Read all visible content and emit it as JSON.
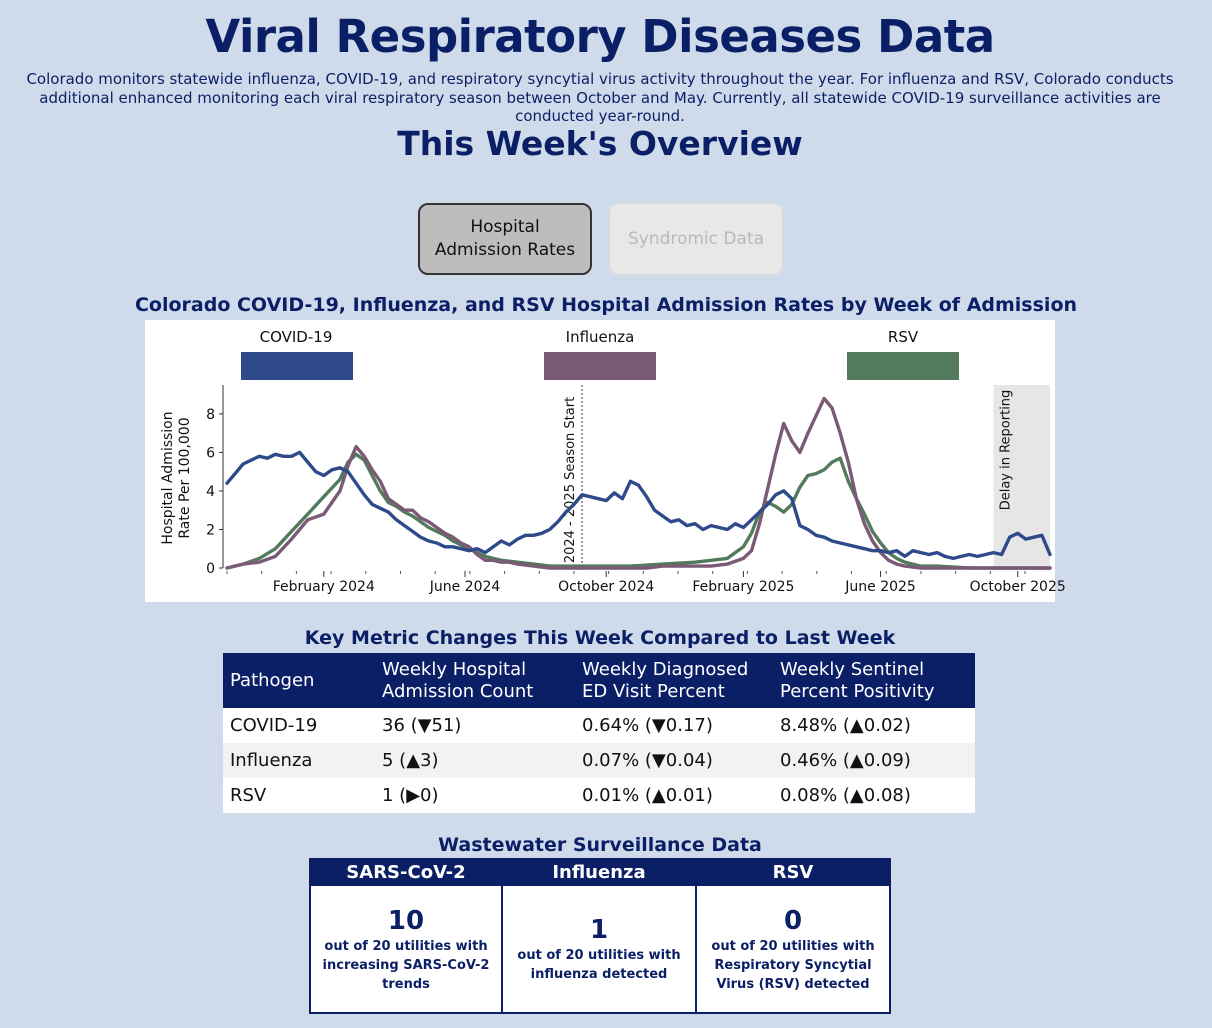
{
  "page": {
    "title": "Viral Respiratory Diseases Data",
    "intro": "Colorado monitors statewide influenza, COVID-19, and respiratory syncytial virus activity throughout the year. For influenza and RSV, Colorado conducts additional enhanced monitoring each viral respiratory season between October and May. Currently, all statewide COVID-19 surveillance activities are conducted year-round.",
    "overview_title": "This Week's Overview"
  },
  "tabs": {
    "hospital_label": "Hospital Admission Rates",
    "syndromic_label": "Syndromic Data"
  },
  "chart_data": {
    "type": "line",
    "title": "Colorado COVID-19, Influenza, and RSV Hospital Admission Rates by Week of Admission",
    "xlabel": "",
    "ylabel": "Hospital Admission Rate Per 100,000",
    "ylim": [
      0,
      9.5
    ],
    "yticks": [
      0,
      2,
      4,
      6,
      8
    ],
    "xticks": [
      {
        "label": "February 2024",
        "week": 12
      },
      {
        "label": "June 2024",
        "week": 29.5
      },
      {
        "label": "October 2024",
        "week": 47
      },
      {
        "label": "February 2025",
        "week": 64
      },
      {
        "label": "June 2025",
        "week": 81
      },
      {
        "label": "October 2025",
        "week": 98
      }
    ],
    "annotations": {
      "season_start_label": "2024 - 2025 Season Start",
      "season_start_week": 44,
      "delay_label": "Delay in Reporting",
      "delay_start_week": 95,
      "delay_end_week": 102
    },
    "legend": [
      {
        "name": "COVID-19",
        "color": "#2f4a8a"
      },
      {
        "name": "Influenza",
        "color": "#7a5a75"
      },
      {
        "name": "RSV",
        "color": "#527a5c"
      }
    ],
    "series": [
      {
        "name": "COVID-19",
        "color": "#2f4a8a",
        "points": [
          [
            0,
            4.4
          ],
          [
            1,
            4.9
          ],
          [
            2,
            5.4
          ],
          [
            3,
            5.6
          ],
          [
            4,
            5.8
          ],
          [
            5,
            5.7
          ],
          [
            6,
            5.9
          ],
          [
            7,
            5.8
          ],
          [
            8,
            5.8
          ],
          [
            9,
            6.0
          ],
          [
            10,
            5.5
          ],
          [
            11,
            5.0
          ],
          [
            12,
            4.8
          ],
          [
            13,
            5.1
          ],
          [
            14,
            5.2
          ],
          [
            15,
            5.0
          ],
          [
            16,
            4.4
          ],
          [
            17,
            3.8
          ],
          [
            18,
            3.3
          ],
          [
            19,
            3.1
          ],
          [
            20,
            2.9
          ],
          [
            21,
            2.5
          ],
          [
            22,
            2.2
          ],
          [
            23,
            1.9
          ],
          [
            24,
            1.6
          ],
          [
            25,
            1.4
          ],
          [
            26,
            1.3
          ],
          [
            27,
            1.1
          ],
          [
            28,
            1.1
          ],
          [
            29,
            1.0
          ],
          [
            30,
            0.9
          ],
          [
            31,
            1.0
          ],
          [
            32,
            0.8
          ],
          [
            33,
            1.1
          ],
          [
            34,
            1.4
          ],
          [
            35,
            1.2
          ],
          [
            36,
            1.5
          ],
          [
            37,
            1.7
          ],
          [
            38,
            1.7
          ],
          [
            39,
            1.8
          ],
          [
            40,
            2.0
          ],
          [
            41,
            2.4
          ],
          [
            42,
            2.9
          ],
          [
            43,
            3.3
          ],
          [
            44,
            3.8
          ],
          [
            45,
            3.7
          ],
          [
            46,
            3.6
          ],
          [
            47,
            3.5
          ],
          [
            48,
            3.9
          ],
          [
            49,
            3.6
          ],
          [
            50,
            4.5
          ],
          [
            51,
            4.3
          ],
          [
            52,
            3.7
          ],
          [
            53,
            3.0
          ],
          [
            54,
            2.7
          ],
          [
            55,
            2.4
          ],
          [
            56,
            2.5
          ],
          [
            57,
            2.2
          ],
          [
            58,
            2.3
          ],
          [
            59,
            2.0
          ],
          [
            60,
            2.2
          ],
          [
            61,
            2.1
          ],
          [
            62,
            2.0
          ],
          [
            63,
            2.3
          ],
          [
            64,
            2.1
          ],
          [
            65,
            2.5
          ],
          [
            66,
            2.9
          ],
          [
            67,
            3.3
          ],
          [
            68,
            3.8
          ],
          [
            69,
            4.0
          ],
          [
            70,
            3.6
          ],
          [
            71,
            2.2
          ],
          [
            72,
            2.0
          ],
          [
            73,
            1.7
          ],
          [
            74,
            1.6
          ],
          [
            75,
            1.4
          ],
          [
            76,
            1.3
          ],
          [
            77,
            1.2
          ],
          [
            78,
            1.1
          ],
          [
            79,
            1.0
          ],
          [
            80,
            0.9
          ],
          [
            81,
            0.9
          ],
          [
            82,
            0.8
          ],
          [
            83,
            0.9
          ],
          [
            84,
            0.6
          ],
          [
            85,
            0.9
          ],
          [
            86,
            0.8
          ],
          [
            87,
            0.7
          ],
          [
            88,
            0.8
          ],
          [
            89,
            0.6
          ],
          [
            90,
            0.5
          ],
          [
            91,
            0.6
          ],
          [
            92,
            0.7
          ],
          [
            93,
            0.6
          ],
          [
            94,
            0.7
          ],
          [
            95,
            0.8
          ],
          [
            96,
            0.7
          ],
          [
            97,
            1.6
          ],
          [
            98,
            1.8
          ],
          [
            99,
            1.5
          ],
          [
            100,
            1.6
          ],
          [
            101,
            1.7
          ],
          [
            102,
            0.7
          ]
        ]
      },
      {
        "name": "Influenza",
        "color": "#7a5a75",
        "points": [
          [
            0,
            0.0
          ],
          [
            2,
            0.2
          ],
          [
            4,
            0.3
          ],
          [
            6,
            0.6
          ],
          [
            8,
            1.5
          ],
          [
            10,
            2.5
          ],
          [
            12,
            2.8
          ],
          [
            14,
            4.0
          ],
          [
            15,
            5.3
          ],
          [
            16,
            6.3
          ],
          [
            17,
            5.8
          ],
          [
            18,
            5.1
          ],
          [
            19,
            4.5
          ],
          [
            20,
            3.6
          ],
          [
            21,
            3.3
          ],
          [
            22,
            3.0
          ],
          [
            23,
            3.0
          ],
          [
            24,
            2.6
          ],
          [
            25,
            2.4
          ],
          [
            26,
            2.1
          ],
          [
            27,
            1.8
          ],
          [
            28,
            1.6
          ],
          [
            29,
            1.3
          ],
          [
            30,
            1.1
          ],
          [
            31,
            0.7
          ],
          [
            32,
            0.4
          ],
          [
            33,
            0.4
          ],
          [
            34,
            0.3
          ],
          [
            35,
            0.3
          ],
          [
            36,
            0.2
          ],
          [
            38,
            0.1
          ],
          [
            40,
            0.0
          ],
          [
            44,
            0.0
          ],
          [
            46,
            0.0
          ],
          [
            48,
            0.0
          ],
          [
            50,
            0.0
          ],
          [
            52,
            0.0
          ],
          [
            54,
            0.1
          ],
          [
            56,
            0.1
          ],
          [
            58,
            0.1
          ],
          [
            60,
            0.1
          ],
          [
            62,
            0.2
          ],
          [
            64,
            0.5
          ],
          [
            65,
            0.9
          ],
          [
            66,
            2.3
          ],
          [
            67,
            4.1
          ],
          [
            68,
            5.9
          ],
          [
            69,
            7.5
          ],
          [
            70,
            6.6
          ],
          [
            71,
            6.0
          ],
          [
            72,
            7.0
          ],
          [
            73,
            7.9
          ],
          [
            74,
            8.8
          ],
          [
            75,
            8.3
          ],
          [
            76,
            7.0
          ],
          [
            77,
            5.5
          ],
          [
            78,
            3.6
          ],
          [
            79,
            2.3
          ],
          [
            80,
            1.4
          ],
          [
            81,
            0.8
          ],
          [
            82,
            0.4
          ],
          [
            83,
            0.2
          ],
          [
            84,
            0.1
          ],
          [
            86,
            0.0
          ],
          [
            90,
            0.0
          ],
          [
            94,
            0.0
          ],
          [
            98,
            0.0
          ],
          [
            102,
            0.0
          ]
        ]
      },
      {
        "name": "RSV",
        "color": "#527a5c",
        "points": [
          [
            0,
            0.0
          ],
          [
            2,
            0.2
          ],
          [
            4,
            0.5
          ],
          [
            6,
            1.0
          ],
          [
            8,
            1.9
          ],
          [
            10,
            2.8
          ],
          [
            12,
            3.7
          ],
          [
            14,
            4.6
          ],
          [
            15,
            5.5
          ],
          [
            16,
            5.9
          ],
          [
            17,
            5.6
          ],
          [
            18,
            4.8
          ],
          [
            19,
            4.0
          ],
          [
            20,
            3.4
          ],
          [
            21,
            3.2
          ],
          [
            22,
            2.9
          ],
          [
            23,
            2.7
          ],
          [
            24,
            2.4
          ],
          [
            25,
            2.1
          ],
          [
            26,
            1.9
          ],
          [
            27,
            1.7
          ],
          [
            28,
            1.4
          ],
          [
            29,
            1.2
          ],
          [
            30,
            1.0
          ],
          [
            31,
            0.8
          ],
          [
            32,
            0.6
          ],
          [
            33,
            0.5
          ],
          [
            34,
            0.4
          ],
          [
            36,
            0.3
          ],
          [
            38,
            0.2
          ],
          [
            40,
            0.1
          ],
          [
            42,
            0.1
          ],
          [
            44,
            0.1
          ],
          [
            46,
            0.1
          ],
          [
            50,
            0.1
          ],
          [
            54,
            0.2
          ],
          [
            58,
            0.3
          ],
          [
            60,
            0.4
          ],
          [
            62,
            0.5
          ],
          [
            64,
            1.1
          ],
          [
            65,
            1.8
          ],
          [
            66,
            2.9
          ],
          [
            67,
            3.4
          ],
          [
            68,
            3.2
          ],
          [
            69,
            2.9
          ],
          [
            70,
            3.3
          ],
          [
            71,
            4.2
          ],
          [
            72,
            4.8
          ],
          [
            73,
            4.9
          ],
          [
            74,
            5.1
          ],
          [
            75,
            5.5
          ],
          [
            76,
            5.7
          ],
          [
            77,
            4.5
          ],
          [
            78,
            3.6
          ],
          [
            79,
            2.8
          ],
          [
            80,
            1.9
          ],
          [
            81,
            1.3
          ],
          [
            82,
            0.8
          ],
          [
            83,
            0.5
          ],
          [
            84,
            0.3
          ],
          [
            86,
            0.1
          ],
          [
            88,
            0.1
          ],
          [
            92,
            0.0
          ],
          [
            96,
            0.0
          ],
          [
            100,
            0.0
          ],
          [
            102,
            0.0
          ]
        ]
      }
    ]
  },
  "metrics": {
    "title": "Key Metric Changes This Week Compared to Last Week",
    "headers": [
      "Pathogen",
      "Weekly Hospital Admission Count",
      "Weekly Diagnosed ED Visit Percent",
      "Weekly Sentinel Percent Positivity"
    ],
    "rows": [
      [
        "COVID-19",
        "36 (▼51)",
        "0.64% (▼0.17)",
        "8.48% (▲0.02)"
      ],
      [
        "Influenza",
        "5 (▲3)",
        "0.07% (▼0.04)",
        "0.46% (▲0.09)"
      ],
      [
        "RSV",
        "1 (▶0)",
        "0.01% (▲0.01)",
        "0.08% (▲0.08)"
      ]
    ]
  },
  "wastewater": {
    "title": "Wastewater Surveillance Data",
    "cards": [
      {
        "name": "SARS-CoV-2",
        "value": "10",
        "desc": "out of 20 utilities with increasing SARS-CoV-2 trends"
      },
      {
        "name": "Influenza",
        "value": "1",
        "desc": "out of 20 utilities with influenza detected"
      },
      {
        "name": "RSV",
        "value": "0",
        "desc": "out of 20 utilities with Respiratory Syncytial Virus (RSV) detected"
      }
    ]
  }
}
